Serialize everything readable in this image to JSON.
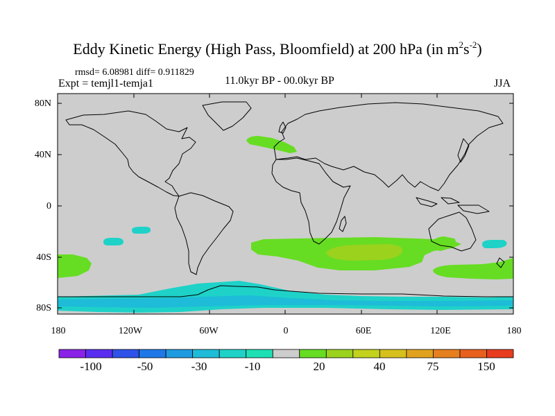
{
  "title_main": "Eddy Kinetic Energy (High Pass, Bloomfield) at 200 hPa (in m",
  "title_exp1": "2",
  "title_mid": "s",
  "title_exp2": "-2",
  "title_end": ")",
  "stats": "rmsd= 6.08981 diff= 0.911829",
  "expt": "Expt = temjl1-temja1",
  "period": "11.0kyr BP - 00.0kyr BP",
  "season": "JJA",
  "y_axis": {
    "labels": [
      "80N",
      "40N",
      "0",
      "40S",
      "80S"
    ]
  },
  "x_axis": {
    "labels": [
      "180",
      "120W",
      "60W",
      "0",
      "60E",
      "120E",
      "180"
    ]
  },
  "colorbar": {
    "colors": [
      "#8a22e8",
      "#5a2ef0",
      "#2f52e8",
      "#1e78e8",
      "#1e9be0",
      "#1ebcd8",
      "#1ed2c8",
      "#1ee0b4",
      "#cdcdcd",
      "#66dd22",
      "#9ad21e",
      "#c2d21e",
      "#d6c01e",
      "#e0a21e",
      "#e6801e",
      "#e8601e",
      "#e83c1e"
    ],
    "labels": [
      "-100",
      "-50",
      "-30",
      "-10",
      "20",
      "40",
      "75",
      "150"
    ]
  },
  "map": {
    "background_color": "#cdcdcd",
    "coastline_color": "#000000"
  },
  "anomaly_regions": [
    {
      "name": "north-atlantic-positive",
      "value_band": "10 to 20"
    },
    {
      "name": "south-pacific-negative",
      "value_band": "-10 to -20"
    },
    {
      "name": "southern-ocean-positive",
      "value_band": "10 to 20"
    },
    {
      "name": "south-indian-ocean-max",
      "value_band": "20 to 30"
    },
    {
      "name": "antarctic-negative",
      "value_band": "-10 to -20"
    }
  ]
}
